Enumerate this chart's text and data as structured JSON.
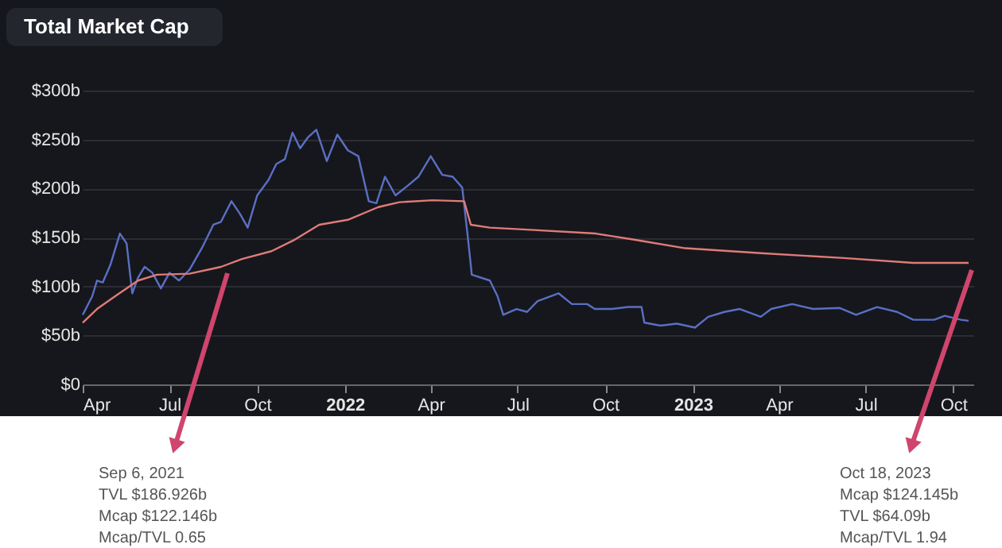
{
  "chart_data": {
    "type": "line",
    "title": "Total Market Cap",
    "xlim": [
      "2021-04-01",
      "2023-10-22"
    ],
    "xticks": [
      {
        "value": "2021-04-01",
        "label": "Apr"
      },
      {
        "value": "2021-07-01",
        "label": "Jul"
      },
      {
        "value": "2021-10-01",
        "label": "Oct"
      },
      {
        "value": "2022-01-01",
        "label": "2022"
      },
      {
        "value": "2022-04-01",
        "label": "Apr"
      },
      {
        "value": "2022-07-01",
        "label": "Jul"
      },
      {
        "value": "2022-10-01",
        "label": "Oct"
      },
      {
        "value": "2023-01-01",
        "label": "2023"
      },
      {
        "value": "2023-04-01",
        "label": "Apr"
      },
      {
        "value": "2023-07-01",
        "label": "Jul"
      },
      {
        "value": "2023-10-01",
        "label": "Oct"
      }
    ],
    "ylim": [
      0,
      300
    ],
    "yticks": [
      {
        "value": 0,
        "label": "$0"
      },
      {
        "value": 50,
        "label": "$50b"
      },
      {
        "value": 100,
        "label": "$100b"
      },
      {
        "value": 150,
        "label": "$150b"
      },
      {
        "value": 200,
        "label": "$200b"
      },
      {
        "value": 250,
        "label": "$250b"
      },
      {
        "value": 300,
        "label": "$300b"
      }
    ],
    "grid": "y",
    "marker": "none",
    "line_style": "solid",
    "series": [
      {
        "color": "#5a6fc4",
        "x": [
          "2021-04-01",
          "2021-04-11",
          "2021-04-16",
          "2021-04-22",
          "2021-04-30",
          "2021-05-10",
          "2021-05-17",
          "2021-05-23",
          "2021-05-29",
          "2021-06-05",
          "2021-06-13",
          "2021-06-22",
          "2021-07-01",
          "2021-07-11",
          "2021-07-22",
          "2021-08-05",
          "2021-08-16",
          "2021-08-24",
          "2021-09-04",
          "2021-09-13",
          "2021-09-21",
          "2021-10-01",
          "2021-10-13",
          "2021-10-21",
          "2021-10-30",
          "2021-11-07",
          "2021-11-15",
          "2021-11-23",
          "2021-12-02",
          "2021-12-13",
          "2021-12-24",
          "2022-01-04",
          "2022-01-15",
          "2022-01-26",
          "2022-02-03",
          "2022-02-12",
          "2022-02-23",
          "2022-03-08",
          "2022-03-19",
          "2022-04-01",
          "2022-04-13",
          "2022-04-24",
          "2022-05-04",
          "2022-05-10",
          "2022-05-14",
          "2022-06-02",
          "2022-06-10",
          "2022-06-16",
          "2022-06-30",
          "2022-07-11",
          "2022-07-22",
          "2022-08-13",
          "2022-08-27",
          "2022-09-12",
          "2022-09-20",
          "2022-10-08",
          "2022-10-25",
          "2022-11-08",
          "2022-11-11",
          "2022-11-28",
          "2022-12-15",
          "2023-01-03",
          "2023-01-17",
          "2023-02-03",
          "2023-02-19",
          "2023-03-13",
          "2023-03-24",
          "2023-04-15",
          "2023-05-07",
          "2023-06-04",
          "2023-06-21",
          "2023-07-13",
          "2023-08-03",
          "2023-08-20",
          "2023-09-11",
          "2023-09-22",
          "2023-10-09",
          "2023-10-17"
        ],
        "values": [
          71,
          90,
          106,
          104,
          122,
          154,
          144,
          93,
          109,
          120,
          114,
          98,
          114,
          106,
          117,
          141,
          163,
          166,
          187,
          174,
          160,
          193,
          209,
          225,
          230,
          257,
          241,
          252,
          260,
          228,
          255,
          239,
          233,
          187,
          185,
          212,
          193,
          203,
          212,
          233,
          214,
          212,
          201,
          149,
          112,
          106,
          90,
          71,
          77,
          74,
          85,
          93,
          82,
          82,
          77,
          77,
          79,
          79,
          63,
          60,
          62,
          58,
          69,
          74,
          77,
          69,
          77,
          82,
          77,
          78,
          71,
          79,
          74,
          66,
          66,
          70,
          66,
          65
        ]
      },
      {
        "color": "#e07b79",
        "x": [
          "2021-04-01",
          "2021-04-16",
          "2021-05-05",
          "2021-05-29",
          "2021-06-18",
          "2021-07-22",
          "2021-08-24",
          "2021-09-15",
          "2021-10-16",
          "2021-11-08",
          "2021-12-05",
          "2022-01-04",
          "2022-02-05",
          "2022-02-27",
          "2022-04-03",
          "2022-05-06",
          "2022-05-13",
          "2022-06-02",
          "2022-07-11",
          "2022-09-21",
          "2022-10-30",
          "2022-12-24",
          "2023-03-13",
          "2023-06-08",
          "2023-08-20",
          "2023-10-17"
        ],
        "values": [
          63,
          77,
          90,
          106,
          112,
          113,
          120,
          128,
          136,
          147,
          163,
          168,
          181,
          186,
          188,
          187,
          163,
          160,
          158,
          154,
          148,
          139,
          134,
          129,
          124,
          124
        ]
      }
    ],
    "annotations": [
      "Sep 6, 2021",
      "TVL  $186.926b",
      "Mcap  $122.146b",
      "Mcap/TVL  0.65",
      "Oct 18, 2023",
      "Mcap  $124.145b",
      "TVL  $64.09b",
      "Mcap/TVL  1.94"
    ]
  }
}
